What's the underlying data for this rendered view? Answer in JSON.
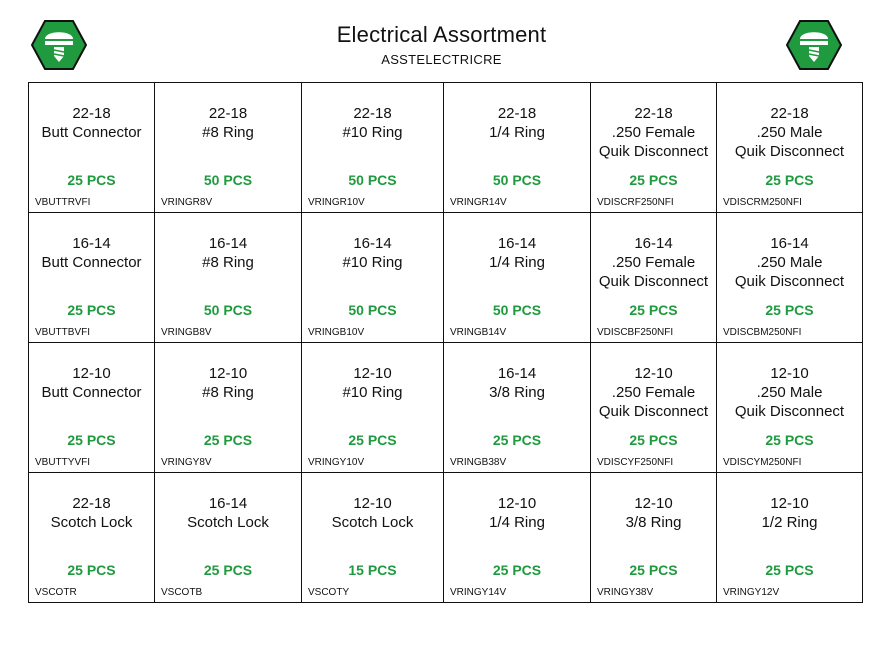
{
  "header": {
    "title": "Electrical Assortment",
    "subtitle": "ASSTELECTRICRE"
  },
  "colors": {
    "quantity": "#1f9a3e",
    "logo_fill": "#1f9a3e",
    "logo_border": "#111111",
    "grid_line": "#111111"
  },
  "logo": {
    "icon": "screw-icon"
  },
  "rows": [
    {
      "cells": [
        {
          "size": "22-18",
          "name": "Butt Connector",
          "qty": "25 PCS",
          "sku": "VBUTTRVFI"
        },
        {
          "size": "22-18",
          "name": "#8 Ring",
          "qty": "50 PCS",
          "sku": "VRINGR8V"
        },
        {
          "size": "22-18",
          "name": "#10 Ring",
          "qty": "50 PCS",
          "sku": "VRINGR10V"
        },
        {
          "size": "22-18",
          "name": "1/4 Ring",
          "qty": "50 PCS",
          "sku": "VRINGR14V"
        },
        {
          "size": "22-18",
          "name": ".250 Female\nQuik Disconnect",
          "qty": "25 PCS",
          "sku": "VDISCRF250NFI"
        },
        {
          "size": "22-18",
          "name": ".250 Male\nQuik Disconnect",
          "qty": "25 PCS",
          "sku": "VDISCRM250NFI"
        }
      ]
    },
    {
      "cells": [
        {
          "size": "16-14",
          "name": "Butt Connector",
          "qty": "25 PCS",
          "sku": "VBUTTBVFI"
        },
        {
          "size": "16-14",
          "name": "#8 Ring",
          "qty": "50 PCS",
          "sku": "VRINGB8V"
        },
        {
          "size": "16-14",
          "name": "#10 Ring",
          "qty": "50 PCS",
          "sku": "VRINGB10V"
        },
        {
          "size": "16-14",
          "name": "1/4 Ring",
          "qty": "50 PCS",
          "sku": "VRINGB14V"
        },
        {
          "size": "16-14",
          "name": ".250 Female\nQuik Disconnect",
          "qty": "25 PCS",
          "sku": "VDISCBF250NFI"
        },
        {
          "size": "16-14",
          "name": ".250 Male\nQuik Disconnect",
          "qty": "25 PCS",
          "sku": "VDISCBM250NFI"
        }
      ]
    },
    {
      "cells": [
        {
          "size": "12-10",
          "name": "Butt Connector",
          "qty": "25 PCS",
          "sku": "VBUTTYVFI"
        },
        {
          "size": "12-10",
          "name": "#8 Ring",
          "qty": "25 PCS",
          "sku": "VRINGY8V"
        },
        {
          "size": "12-10",
          "name": "#10 Ring",
          "qty": "25 PCS",
          "sku": "VRINGY10V"
        },
        {
          "size": "16-14",
          "name": "3/8 Ring",
          "qty": "25 PCS",
          "sku": "VRINGB38V"
        },
        {
          "size": "12-10",
          "name": ".250 Female\nQuik Disconnect",
          "qty": "25 PCS",
          "sku": "VDISCYF250NFI"
        },
        {
          "size": "12-10",
          "name": ".250 Male\nQuik Disconnect",
          "qty": "25 PCS",
          "sku": "VDISCYM250NFI"
        }
      ]
    },
    {
      "cells": [
        {
          "size": "22-18",
          "name": "Scotch Lock",
          "qty": "25 PCS",
          "sku": "VSCOTR"
        },
        {
          "size": "16-14",
          "name": "Scotch Lock",
          "qty": "25 PCS",
          "sku": "VSCOTB"
        },
        {
          "size": "12-10",
          "name": "Scotch Lock",
          "qty": "15 PCS",
          "sku": "VSCOTY"
        },
        {
          "size": "12-10",
          "name": "1/4 Ring",
          "qty": "25 PCS",
          "sku": "VRINGY14V"
        },
        {
          "size": "12-10",
          "name": "3/8 Ring",
          "qty": "25 PCS",
          "sku": "VRINGY38V"
        },
        {
          "size": "12-10",
          "name": "1/2 Ring",
          "qty": "25 PCS",
          "sku": "VRINGY12V"
        }
      ]
    }
  ]
}
